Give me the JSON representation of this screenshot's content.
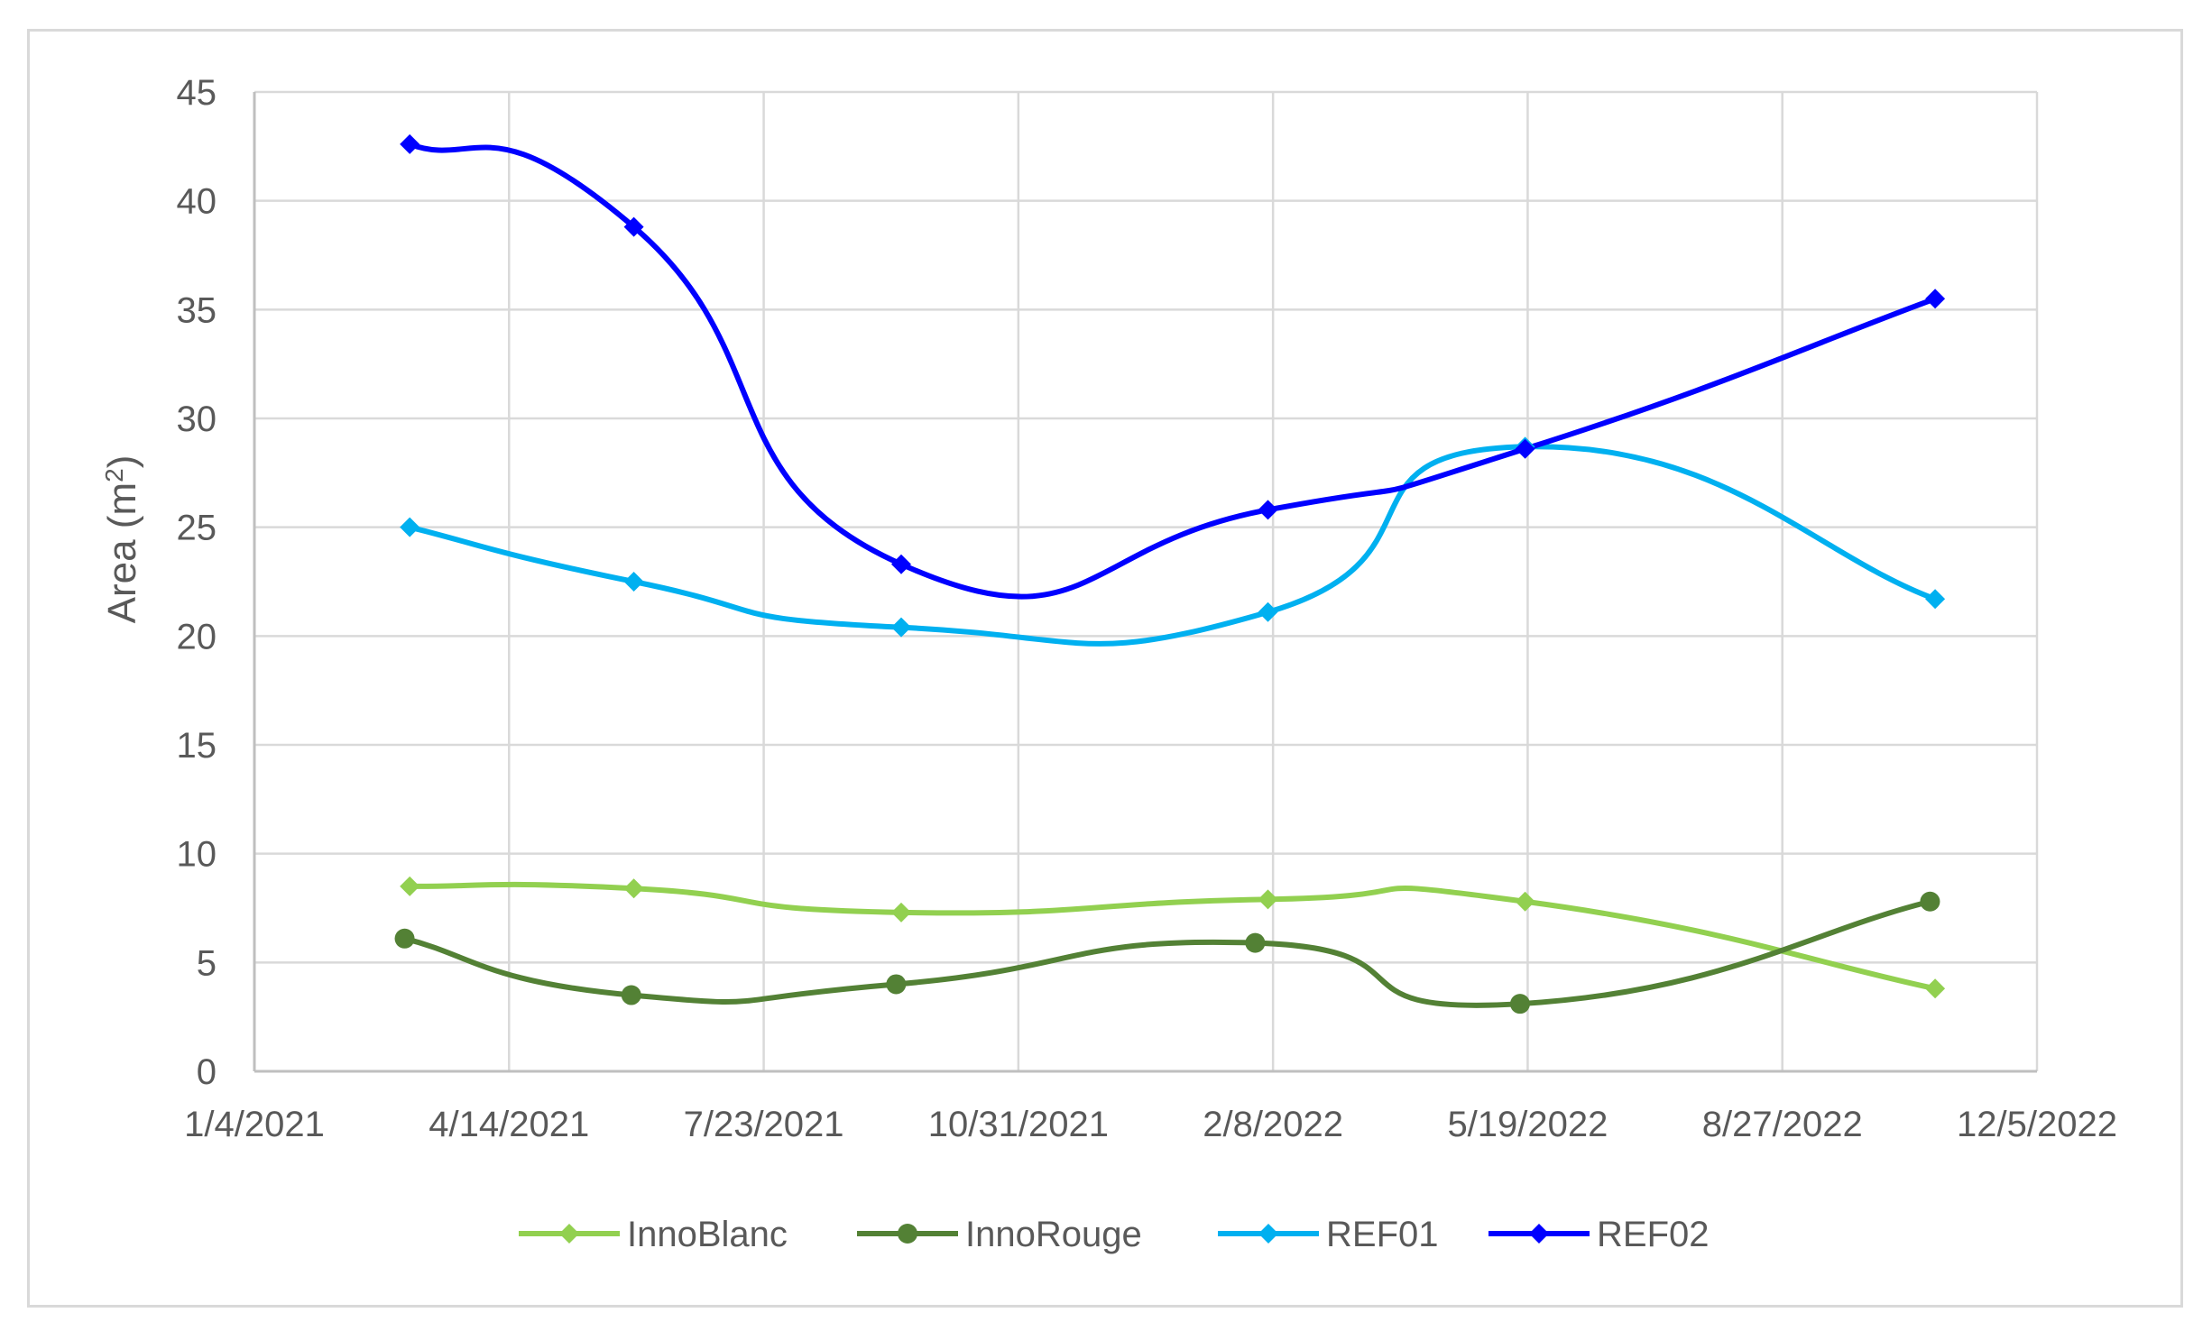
{
  "chart_data": {
    "type": "line",
    "title": "",
    "xlabel": "",
    "ylabel": "Area (m",
    "ylabel_sup": "2",
    "ylabel_close": ")",
    "x_tick_labels": [
      "1/4/2021",
      "4/14/2021",
      "7/23/2021",
      "10/31/2021",
      "2/8/2022",
      "5/19/2022",
      "8/27/2022",
      "12/5/2022"
    ],
    "x_tick_dates": [
      "2021-01-04",
      "2021-04-14",
      "2021-07-23",
      "2021-10-31",
      "2022-02-08",
      "2022-05-19",
      "2022-08-27",
      "2022-12-05"
    ],
    "xlim": [
      "2021-01-04",
      "2022-12-05"
    ],
    "y_tick_labels": [
      "0",
      "5",
      "10",
      "15",
      "20",
      "25",
      "30",
      "35",
      "40",
      "45"
    ],
    "ylim": [
      0,
      45
    ],
    "grid": true,
    "smooth": true,
    "legend_position": "bottom",
    "series": [
      {
        "name": "InnoBlanc",
        "color": "#92d050",
        "marker": "diamond",
        "x": [
          "2021-03-06",
          "2021-06-02",
          "2021-09-15",
          "2022-02-06",
          "2022-05-18",
          "2022-10-26"
        ],
        "y": [
          8.5,
          8.4,
          7.3,
          7.9,
          7.8,
          3.8
        ]
      },
      {
        "name": "InnoRouge",
        "color": "#538135",
        "marker": "circle",
        "x": [
          "2021-03-04",
          "2021-06-01",
          "2021-09-13",
          "2022-02-01",
          "2022-05-16",
          "2022-10-24"
        ],
        "y": [
          6.1,
          3.5,
          4.0,
          5.9,
          3.1,
          7.8
        ]
      },
      {
        "name": "REF01",
        "color": "#00b0f0",
        "marker": "diamond",
        "x": [
          "2021-03-06",
          "2021-06-02",
          "2021-09-15",
          "2022-02-06",
          "2022-05-18",
          "2022-10-26"
        ],
        "y": [
          25.0,
          22.5,
          20.4,
          21.1,
          28.7,
          21.7
        ]
      },
      {
        "name": "REF02",
        "color": "#0000ff",
        "marker": "diamond",
        "x": [
          "2021-03-06",
          "2021-06-02",
          "2021-09-15",
          "2022-02-06",
          "2022-05-18",
          "2022-10-26"
        ],
        "y": [
          42.6,
          38.8,
          23.3,
          25.8,
          28.6,
          35.5
        ]
      }
    ]
  }
}
